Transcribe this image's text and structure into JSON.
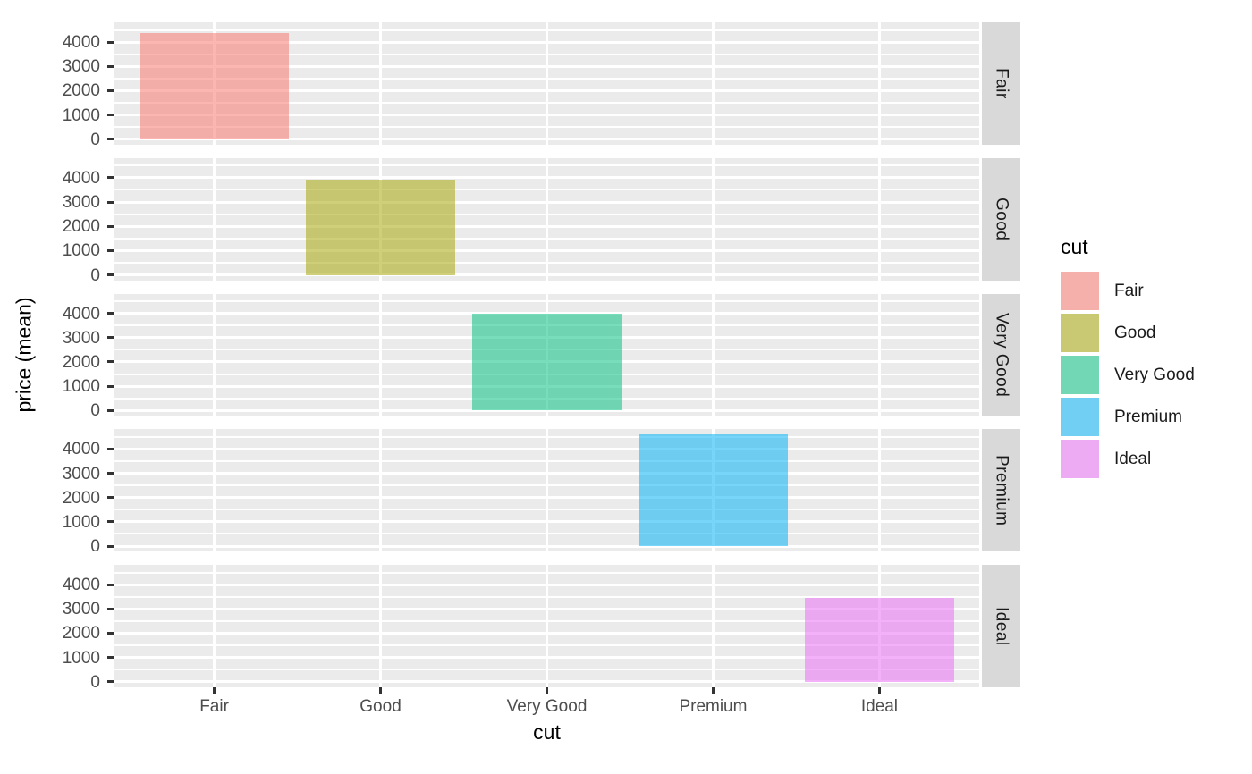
{
  "chart_data": {
    "type": "bar",
    "title": "",
    "xlabel": "cut",
    "ylabel": "price (mean)",
    "categories": [
      "Fair",
      "Good",
      "Very Good",
      "Premium",
      "Ideal"
    ],
    "values": [
      4359,
      3929,
      3982,
      4584,
      3458
    ],
    "series_colors": [
      "#F8766D",
      "#A3A500",
      "#00BF7D",
      "#00B0F6",
      "#E76BF3"
    ],
    "fill_alpha": 0.53,
    "facets": {
      "strip_position": "right",
      "labels": [
        "Fair",
        "Good",
        "Very Good",
        "Premium",
        "Ideal"
      ]
    },
    "x_tick_labels": [
      "Fair",
      "Good",
      "Very Good",
      "Premium",
      "Ideal"
    ],
    "y_ticks": [
      0,
      1000,
      2000,
      3000,
      4000
    ],
    "y_minor_ticks": [
      500,
      1500,
      2500,
      3500,
      4500
    ],
    "ylim": [
      -229,
      4813
    ],
    "grid": true,
    "legend": {
      "title": "cut",
      "position": "right",
      "entries": [
        "Fair",
        "Good",
        "Very Good",
        "Premium",
        "Ideal"
      ]
    },
    "theme": {
      "panel_bg": "#EBEBEB",
      "strip_bg": "#D9D9D9",
      "grid_color": "#FFFFFF",
      "axis_text_color": "#4D4D4D",
      "title_color": "#000000",
      "strip_text_color": "#1A1A1A",
      "legend_key_bg": "#F2F2F2",
      "tick_mark_color": "#333333"
    }
  }
}
